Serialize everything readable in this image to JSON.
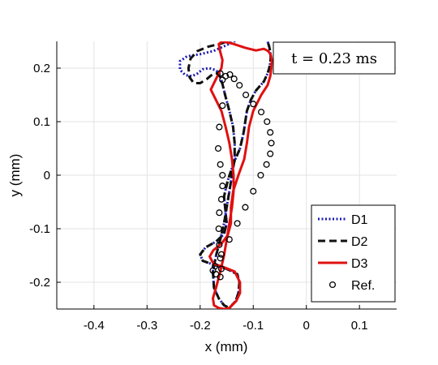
{
  "chart_data": {
    "type": "line",
    "xlabel": "x (mm)",
    "ylabel": "y (mm)",
    "xlim": [
      -0.47,
      0.17
    ],
    "ylim": [
      -0.25,
      0.25
    ],
    "x_ticks": [
      -0.4,
      -0.3,
      -0.2,
      -0.1,
      0,
      0.1
    ],
    "x_tick_labels": [
      "-0.4",
      "-0.3",
      "-0.2",
      "-0.1",
      "0",
      "0.1"
    ],
    "y_ticks": [
      -0.2,
      -0.1,
      0,
      0.1,
      0.2
    ],
    "y_tick_labels": [
      "-0.2",
      "-0.1",
      "0",
      "0.1",
      "0.2"
    ],
    "grid": true,
    "legend_position": "bottom-right",
    "annotation": "t = 0.23 ms",
    "colors": {
      "D1": "#1a1ab4",
      "D2": "#111111",
      "D3": "#e01010",
      "Ref": "#000000"
    },
    "series": [
      {
        "name": "D1",
        "style": "dotted",
        "x": [
          -0.145,
          -0.133,
          -0.128,
          -0.126,
          -0.13,
          -0.15,
          -0.175,
          -0.195,
          -0.2,
          -0.19,
          -0.17,
          -0.155,
          -0.15,
          -0.152,
          -0.155,
          -0.148,
          -0.138,
          -0.125,
          -0.118,
          -0.115,
          -0.112,
          -0.105,
          -0.095,
          -0.08,
          -0.073,
          -0.07,
          -0.068,
          -0.067,
          -0.068,
          -0.07,
          -0.073,
          -0.08,
          -0.09,
          -0.103,
          -0.115,
          -0.13,
          -0.15,
          -0.175,
          -0.2,
          -0.225,
          -0.238,
          -0.238,
          -0.228,
          -0.215,
          -0.205,
          -0.195,
          -0.183,
          -0.17,
          -0.163,
          -0.158,
          -0.153,
          -0.145,
          -0.138,
          -0.135,
          -0.135,
          -0.14,
          -0.145,
          -0.15,
          -0.155,
          -0.162,
          -0.17,
          -0.176,
          -0.174,
          -0.165,
          -0.155,
          -0.145
        ],
        "y": [
          -0.248,
          -0.235,
          -0.22,
          -0.2,
          -0.185,
          -0.175,
          -0.167,
          -0.16,
          -0.148,
          -0.135,
          -0.124,
          -0.11,
          -0.09,
          -0.07,
          -0.04,
          -0.01,
          0.02,
          0.05,
          0.08,
          0.1,
          0.12,
          0.14,
          0.158,
          0.175,
          0.19,
          0.2,
          0.21,
          0.22,
          0.23,
          0.24,
          0.25,
          0.255,
          0.262,
          0.268,
          0.266,
          0.253,
          0.243,
          0.232,
          0.226,
          0.222,
          0.213,
          0.197,
          0.187,
          0.185,
          0.19,
          0.198,
          0.2,
          0.196,
          0.188,
          0.17,
          0.15,
          0.12,
          0.09,
          0.06,
          0.03,
          0.0,
          -0.03,
          -0.06,
          -0.09,
          -0.12,
          -0.15,
          -0.18,
          -0.21,
          -0.23,
          -0.243,
          -0.248
        ]
      },
      {
        "name": "D2",
        "style": "dashed",
        "x": [
          -0.145,
          -0.133,
          -0.128,
          -0.126,
          -0.13,
          -0.15,
          -0.175,
          -0.195,
          -0.2,
          -0.19,
          -0.17,
          -0.155,
          -0.15,
          -0.152,
          -0.155,
          -0.148,
          -0.138,
          -0.125,
          -0.118,
          -0.115,
          -0.112,
          -0.105,
          -0.095,
          -0.08,
          -0.073,
          -0.07,
          -0.068,
          -0.067,
          -0.068,
          -0.07,
          -0.073,
          -0.08,
          -0.09,
          -0.103,
          -0.118,
          -0.135,
          -0.16,
          -0.185,
          -0.205,
          -0.218,
          -0.222,
          -0.22,
          -0.212,
          -0.2,
          -0.187,
          -0.175,
          -0.165,
          -0.158,
          -0.153,
          -0.145,
          -0.138,
          -0.135,
          -0.135,
          -0.14,
          -0.145,
          -0.15,
          -0.155,
          -0.162,
          -0.17,
          -0.176,
          -0.174,
          -0.165,
          -0.155,
          -0.145
        ],
        "y": [
          -0.248,
          -0.235,
          -0.22,
          -0.2,
          -0.185,
          -0.175,
          -0.167,
          -0.16,
          -0.148,
          -0.135,
          -0.124,
          -0.11,
          -0.09,
          -0.07,
          -0.04,
          -0.01,
          0.02,
          0.05,
          0.08,
          0.1,
          0.12,
          0.14,
          0.158,
          0.175,
          0.19,
          0.2,
          0.21,
          0.22,
          0.23,
          0.24,
          0.25,
          0.255,
          0.262,
          0.268,
          0.266,
          0.255,
          0.246,
          0.24,
          0.232,
          0.218,
          0.2,
          0.183,
          0.172,
          0.172,
          0.18,
          0.19,
          0.19,
          0.17,
          0.15,
          0.12,
          0.09,
          0.06,
          0.03,
          0.0,
          -0.03,
          -0.06,
          -0.09,
          -0.12,
          -0.15,
          -0.18,
          -0.21,
          -0.23,
          -0.243,
          -0.248
        ]
      },
      {
        "name": "D3",
        "style": "solid",
        "x": [
          -0.145,
          -0.132,
          -0.125,
          -0.125,
          -0.135,
          -0.155,
          -0.175,
          -0.182,
          -0.175,
          -0.16,
          -0.148,
          -0.142,
          -0.142,
          -0.138,
          -0.128,
          -0.117,
          -0.112,
          -0.108,
          -0.1,
          -0.085,
          -0.073,
          -0.068,
          -0.066,
          -0.065,
          -0.067,
          -0.072,
          -0.08,
          -0.095,
          -0.115,
          -0.14,
          -0.158,
          -0.165,
          -0.162,
          -0.158,
          -0.16,
          -0.17,
          -0.18,
          -0.17,
          -0.16,
          -0.152,
          -0.145,
          -0.14,
          -0.137,
          -0.137,
          -0.14,
          -0.145,
          -0.15,
          -0.155,
          -0.162,
          -0.17,
          -0.176,
          -0.174,
          -0.165,
          -0.155,
          -0.145
        ],
        "y": [
          -0.248,
          -0.235,
          -0.22,
          -0.2,
          -0.18,
          -0.172,
          -0.165,
          -0.152,
          -0.14,
          -0.128,
          -0.112,
          -0.09,
          -0.06,
          -0.03,
          0.0,
          0.03,
          0.06,
          0.09,
          0.12,
          0.15,
          0.168,
          0.185,
          0.2,
          0.215,
          0.225,
          0.232,
          0.236,
          0.233,
          0.238,
          0.246,
          0.25,
          0.245,
          0.23,
          0.215,
          0.2,
          0.18,
          0.16,
          0.14,
          0.12,
          0.09,
          0.06,
          0.03,
          0.0,
          -0.03,
          -0.06,
          -0.09,
          -0.12,
          -0.15,
          -0.18,
          -0.21,
          -0.23,
          -0.243,
          -0.248,
          -0.25,
          -0.248
        ]
      },
      {
        "name": "Ref.",
        "style": "markers",
        "x": [
          -0.162,
          -0.158,
          -0.152,
          -0.144,
          -0.136,
          -0.126,
          -0.114,
          -0.1,
          -0.085,
          -0.074,
          -0.068,
          -0.066,
          -0.068,
          -0.075,
          -0.086,
          -0.1,
          -0.115,
          -0.13,
          -0.145,
          -0.16,
          -0.172,
          -0.176,
          -0.17,
          -0.162,
          -0.16,
          -0.162,
          -0.164,
          -0.165,
          -0.164,
          -0.16,
          -0.158,
          -0.158,
          -0.162,
          -0.166,
          -0.164,
          -0.158
        ],
        "y": [
          0.19,
          0.178,
          0.185,
          0.188,
          0.18,
          0.168,
          0.15,
          0.133,
          0.118,
          0.1,
          0.08,
          0.06,
          0.04,
          0.02,
          0.0,
          -0.03,
          -0.06,
          -0.09,
          -0.12,
          -0.148,
          -0.17,
          -0.178,
          -0.185,
          -0.19,
          -0.175,
          -0.155,
          -0.13,
          -0.1,
          -0.07,
          -0.045,
          -0.02,
          0.0,
          0.02,
          0.05,
          0.09,
          0.13
        ]
      }
    ]
  }
}
